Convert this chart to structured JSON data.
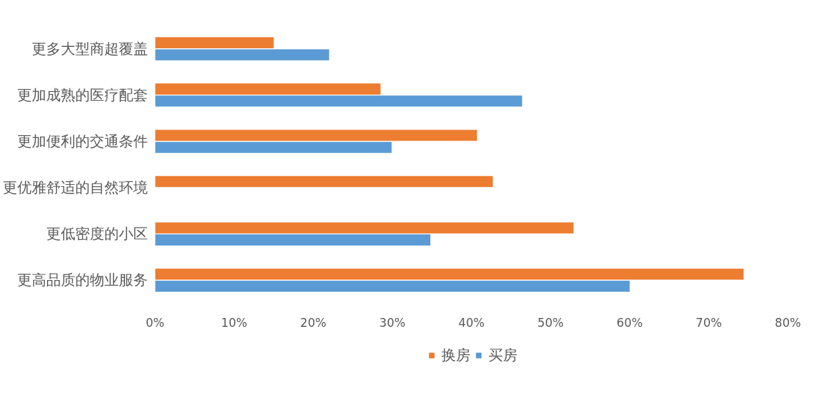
{
  "chart_data": {
    "type": "bar",
    "orientation": "horizontal",
    "categories": [
      "更多大型商超覆盖",
      "更加成熟的医疗配套",
      "更加便利的交通条件",
      "更优雅舒适的自然环境",
      "更低密度的小区",
      "更高品质的物业服务"
    ],
    "series": [
      {
        "name": "换房",
        "color": "#ed7d31",
        "values": [
          15,
          28.5,
          40.7,
          42.7,
          52.9,
          74.4
        ]
      },
      {
        "name": "买房",
        "color": "#5b9bd5",
        "values": [
          22,
          46.4,
          29.9,
          null,
          34.8,
          60
        ]
      }
    ],
    "xlim": [
      0,
      80
    ],
    "xticks": [
      {
        "value": 0,
        "label": "0%"
      },
      {
        "value": 10,
        "label": "10%"
      },
      {
        "value": 20,
        "label": "20%"
      },
      {
        "value": 30,
        "label": "30%"
      },
      {
        "value": 40,
        "label": "40%"
      },
      {
        "value": 50,
        "label": "50%"
      },
      {
        "value": 60,
        "label": "60%"
      },
      {
        "value": 70,
        "label": "70%"
      },
      {
        "value": 80,
        "label": "80%"
      }
    ],
    "legend": "bottom"
  }
}
